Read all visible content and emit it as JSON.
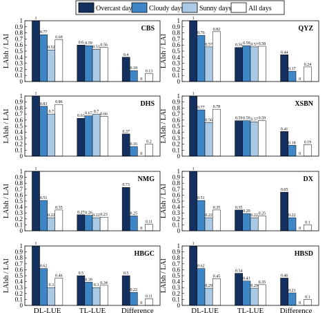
{
  "legend": {
    "items": [
      {
        "label": "Overcast days",
        "color": "#14305e"
      },
      {
        "label": "Cloudy days",
        "color": "#3f86c6"
      },
      {
        "label": "Sunny days",
        "color": "#a9c9e4"
      },
      {
        "label": "All days",
        "color": "#ffffff"
      }
    ]
  },
  "chart_data": {
    "type": "bar",
    "ylabel": "LAIsh / LAI",
    "categories": [
      "DL-LUE",
      "TL-LUE",
      "Difference"
    ],
    "ylim": [
      0,
      1
    ],
    "yticks": [
      "0",
      "0.1",
      "0.2",
      "0.3",
      "0.4",
      "0.5",
      "0.6",
      "0.7",
      "0.8",
      "0.9",
      "1"
    ],
    "series_names": [
      "Overcast days",
      "Cloudy days",
      "Sunny days",
      "All days"
    ],
    "panels": [
      {
        "title": "CBS",
        "values": [
          [
            1,
            0.77,
            0.52,
            0.69
          ],
          [
            0.6,
            0.59,
            0.53,
            0.56
          ],
          [
            0.4,
            0.18,
            0,
            0.13
          ]
        ]
      },
      {
        "title": "QYZ",
        "values": [
          [
            1,
            0.76,
            0.57,
            0.82
          ],
          [
            0.56,
            0.59,
            0.57,
            0.58
          ],
          [
            0.44,
            0.17,
            0,
            0.24
          ]
        ]
      },
      {
        "title": "DHS",
        "values": [
          [
            1,
            0.83,
            0.7,
            0.86
          ],
          [
            0.63,
            0.67,
            0.7,
            0.66
          ],
          [
            0.37,
            0.16,
            0,
            0.2
          ]
        ]
      },
      {
        "title": "XSBN",
        "values": [
          [
            1,
            0.77,
            0.56,
            0.78
          ],
          [
            0.59,
            0.59,
            0.57,
            0.59
          ],
          [
            0.41,
            0.18,
            0,
            0.19
          ]
        ]
      },
      {
        "title": "NMG",
        "values": [
          [
            1,
            0.51,
            0.22,
            0.35
          ],
          [
            0.27,
            0.26,
            0.22,
            0.23
          ],
          [
            0.73,
            0.25,
            0,
            0.11
          ]
        ]
      },
      {
        "title": "DX",
        "values": [
          [
            1,
            0.51,
            0.22,
            0.35
          ],
          [
            0.35,
            0.29,
            0.22,
            0.25
          ],
          [
            0.65,
            0.22,
            0,
            0.1
          ]
        ]
      },
      {
        "title": "HBGC",
        "values": [
          [
            1,
            0.62,
            0.3,
            0.46
          ],
          [
            0.5,
            0.39,
            0.3,
            0.34
          ],
          [
            0.5,
            0.22,
            0,
            0.11
          ]
        ]
      },
      {
        "title": "HBSD",
        "values": [
          [
            1,
            0.62,
            0.29,
            0.45
          ],
          [
            0.54,
            0.41,
            0.29,
            0.35
          ],
          [
            0.46,
            0.21,
            0,
            0.1
          ]
        ]
      }
    ]
  }
}
